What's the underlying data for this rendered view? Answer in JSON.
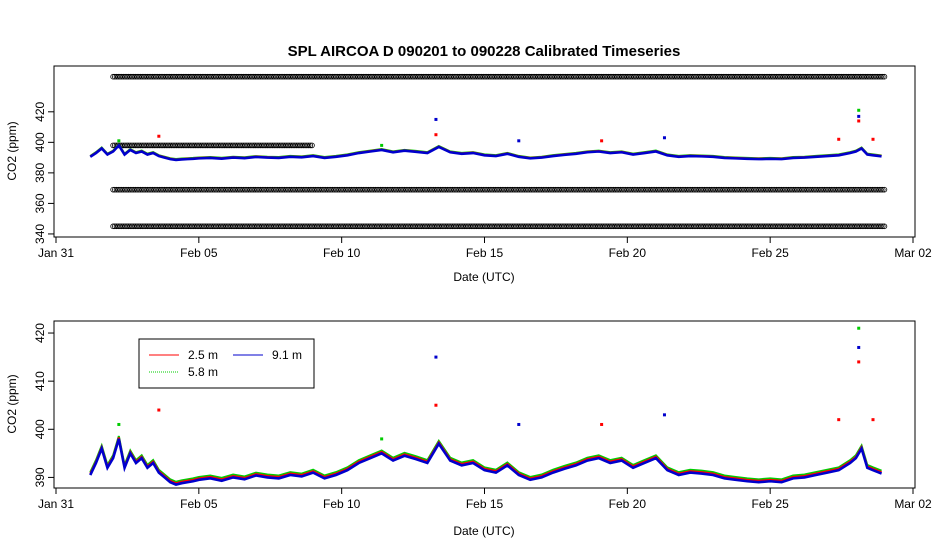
{
  "chart_data": [
    {
      "type": "scatter",
      "title": "SPL   AIRCOA  D    090201  to  090228   Calibrated Timeseries",
      "xlabel": "Date (UTC)",
      "ylabel": "CO2 (ppm)",
      "xlim": [
        "2009-01-31",
        "2009-03-02"
      ],
      "ylim": [
        338,
        450
      ],
      "x_ticks": [
        "2009-01-31",
        "2009-02-05",
        "2009-02-10",
        "2009-02-15",
        "2009-02-20",
        "2009-02-25",
        "2009-03-02"
      ],
      "x_tick_labels": [
        "Jan 31",
        "Feb 05",
        "Feb 10",
        "Feb 15",
        "Feb 20",
        "Feb 25",
        "Mar 02"
      ],
      "y_ticks": [
        340,
        360,
        380,
        400,
        420
      ],
      "y_tick_labels": [
        "340",
        "360",
        "380",
        "400",
        "420"
      ],
      "reference_series": [
        {
          "color": "#000000",
          "x_range": [
            "2009-02-02",
            "2009-03-01"
          ],
          "y": 443
        },
        {
          "color": "#000000",
          "x_range": [
            "2009-02-02",
            "2009-02-09"
          ],
          "y": 398
        },
        {
          "color": "#000000",
          "x_range": [
            "2009-02-02",
            "2009-03-01"
          ],
          "y": 369
        },
        {
          "color": "#000000",
          "x_range": [
            "2009-02-02",
            "2009-03-01"
          ],
          "y": 345
        }
      ],
      "series_ref": "shared"
    },
    {
      "type": "line",
      "title": "",
      "xlabel": "Date (UTC)",
      "ylabel": "CO2 (ppm)",
      "xlim": [
        "2009-01-31",
        "2009-03-02"
      ],
      "ylim": [
        387.8,
        422.5
      ],
      "x_ticks": [
        "2009-01-31",
        "2009-02-05",
        "2009-02-10",
        "2009-02-15",
        "2009-02-20",
        "2009-02-25",
        "2009-03-02"
      ],
      "x_tick_labels": [
        "Jan 31",
        "Feb 05",
        "Feb 10",
        "Feb 15",
        "Feb 20",
        "Feb 25",
        "Mar 02"
      ],
      "y_ticks": [
        390,
        400,
        410,
        420
      ],
      "y_tick_labels": [
        "390",
        "400",
        "410",
        "420"
      ],
      "legend_position": "top-left",
      "series_ref": "shared"
    }
  ],
  "legend": [
    {
      "name": "2.5 m",
      "color": "#ff0000"
    },
    {
      "name": "5.8 m",
      "color": "#00cc00"
    },
    {
      "name": "9.1 m",
      "color": "#0000cc"
    }
  ],
  "shared_series": {
    "x_units": "days from 2009-01-31",
    "x": [
      1.2,
      1.4,
      1.6,
      1.8,
      2.0,
      2.2,
      2.4,
      2.6,
      2.8,
      3.0,
      3.2,
      3.4,
      3.6,
      3.8,
      4.0,
      4.2,
      4.4,
      4.6,
      4.8,
      5.0,
      5.4,
      5.8,
      6.2,
      6.6,
      7.0,
      7.4,
      7.8,
      8.2,
      8.6,
      9.0,
      9.4,
      9.8,
      10.2,
      10.6,
      11.0,
      11.4,
      11.8,
      12.2,
      12.6,
      13.0,
      13.4,
      13.8,
      14.2,
      14.6,
      15.0,
      15.4,
      15.8,
      16.2,
      16.6,
      17.0,
      17.4,
      17.8,
      18.2,
      18.6,
      19.0,
      19.4,
      19.8,
      20.2,
      20.6,
      21.0,
      21.4,
      21.8,
      22.2,
      22.6,
      23.0,
      23.4,
      23.8,
      24.2,
      24.6,
      25.0,
      25.4,
      25.8,
      26.2,
      26.6,
      27.0,
      27.4,
      27.8,
      28.0,
      28.2,
      28.4,
      28.6,
      28.9
    ],
    "y": [
      390.5,
      393,
      396,
      392,
      394,
      398,
      392,
      395,
      393,
      394,
      392,
      393,
      391,
      390,
      389,
      388.5,
      388.8,
      389,
      389.2,
      389.5,
      389.8,
      389.3,
      390,
      389.6,
      390.4,
      390,
      389.8,
      390.5,
      390.2,
      391,
      389.8,
      390.5,
      391.5,
      393,
      394,
      395,
      393.5,
      394.5,
      393.8,
      393,
      397,
      393.5,
      392.5,
      393,
      391.5,
      391,
      392.5,
      390.5,
      389.5,
      390,
      391,
      391.8,
      392.5,
      393.5,
      394,
      393,
      393.5,
      392,
      393,
      394,
      391.5,
      390.5,
      391,
      390.8,
      390.5,
      389.8,
      389.5,
      389.2,
      389,
      389.2,
      389,
      389.8,
      390,
      390.5,
      391,
      391.5,
      393,
      394,
      396,
      392,
      391.5,
      390.8
    ],
    "spikes": [
      {
        "x": 3.6,
        "y": 404,
        "color": "#ff0000"
      },
      {
        "x": 2.2,
        "y": 401,
        "color": "#00cc00"
      },
      {
        "x": 11.4,
        "y": 398,
        "color": "#00cc00"
      },
      {
        "x": 13.3,
        "y": 415,
        "color": "#0000cc"
      },
      {
        "x": 13.3,
        "y": 405,
        "color": "#ff0000"
      },
      {
        "x": 16.2,
        "y": 401,
        "color": "#0000cc"
      },
      {
        "x": 19.1,
        "y": 401,
        "color": "#ff0000"
      },
      {
        "x": 21.3,
        "y": 403,
        "color": "#0000cc"
      },
      {
        "x": 27.4,
        "y": 402,
        "color": "#ff0000"
      },
      {
        "x": 28.1,
        "y": 421,
        "color": "#00cc00"
      },
      {
        "x": 28.1,
        "y": 417,
        "color": "#0000cc"
      },
      {
        "x": 28.1,
        "y": 414,
        "color": "#ff0000"
      },
      {
        "x": 28.6,
        "y": 402,
        "color": "#ff0000"
      }
    ]
  }
}
